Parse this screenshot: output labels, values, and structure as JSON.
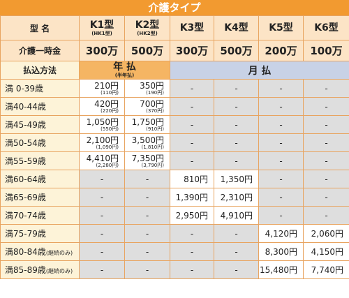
{
  "header": {
    "title": "介護タイプ"
  },
  "table": {
    "type_label": "型 名",
    "types": [
      {
        "name": "K1型",
        "sub": "(HK1型)"
      },
      {
        "name": "K2型",
        "sub": "(HK2型)"
      },
      {
        "name": "K3型"
      },
      {
        "name": "K4型"
      },
      {
        "name": "K5型"
      },
      {
        "name": "K6型"
      }
    ],
    "benefit_label": "介護一時金",
    "benefits": [
      "300万",
      "500万",
      "300万",
      "500万",
      "200万",
      "100万"
    ],
    "payment_label": "払込方法",
    "annual": {
      "label": "年 払",
      "sub": "(半年払)"
    },
    "monthly": "月 払",
    "rows": [
      {
        "age": "満 0-39歳",
        "cells": [
          {
            "value": "210円",
            "sub": "(110円)"
          },
          {
            "value": "350円",
            "sub": "(190円)"
          },
          "-",
          "-",
          "-",
          "-"
        ]
      },
      {
        "age": "満40-44歳",
        "cells": [
          {
            "value": "420円",
            "sub": "(220円)"
          },
          {
            "value": "700円",
            "sub": "(370円)"
          },
          "-",
          "-",
          "-",
          "-"
        ]
      },
      {
        "age": "満45-49歳",
        "cells": [
          {
            "value": "1,050円",
            "sub": "(550円)"
          },
          {
            "value": "1,750円",
            "sub": "(910円)"
          },
          "-",
          "-",
          "-",
          "-"
        ]
      },
      {
        "age": "満50-54歳",
        "cells": [
          {
            "value": "2,100円",
            "sub": "(1,090円)"
          },
          {
            "value": "3,500円",
            "sub": "(1,810円)"
          },
          "-",
          "-",
          "-",
          "-"
        ]
      },
      {
        "age": "満55-59歳",
        "cells": [
          {
            "value": "4,410円",
            "sub": "(2,280円)"
          },
          {
            "value": "7,350円",
            "sub": "(3,790円)"
          },
          "-",
          "-",
          "-",
          "-"
        ]
      },
      {
        "age": "満60-64歳",
        "cells": [
          "-",
          "-",
          {
            "value": "810円"
          },
          {
            "value": "1,350円"
          },
          "-",
          "-"
        ]
      },
      {
        "age": "満65-69歳",
        "cells": [
          "-",
          "-",
          {
            "value": "1,390円"
          },
          {
            "value": "2,310円"
          },
          "-",
          "-"
        ]
      },
      {
        "age": "満70-74歳",
        "cells": [
          "-",
          "-",
          {
            "value": "2,950円"
          },
          {
            "value": "4,910円"
          },
          "-",
          "-"
        ]
      },
      {
        "age": "満75-79歳",
        "cells": [
          "-",
          "-",
          "-",
          "-",
          {
            "value": "4,120円"
          },
          {
            "value": "2,060円"
          }
        ]
      },
      {
        "age": "満80-84歳",
        "note": "(継続のみ)",
        "cells": [
          "-",
          "-",
          "-",
          "-",
          {
            "value": "8,300円"
          },
          {
            "value": "4,150円"
          }
        ]
      },
      {
        "age": "満85-89歳",
        "note": "(継続のみ)",
        "cells": [
          "-",
          "-",
          "-",
          "-",
          {
            "value": "15,480円"
          },
          {
            "value": "7,740円"
          }
        ]
      }
    ]
  }
}
